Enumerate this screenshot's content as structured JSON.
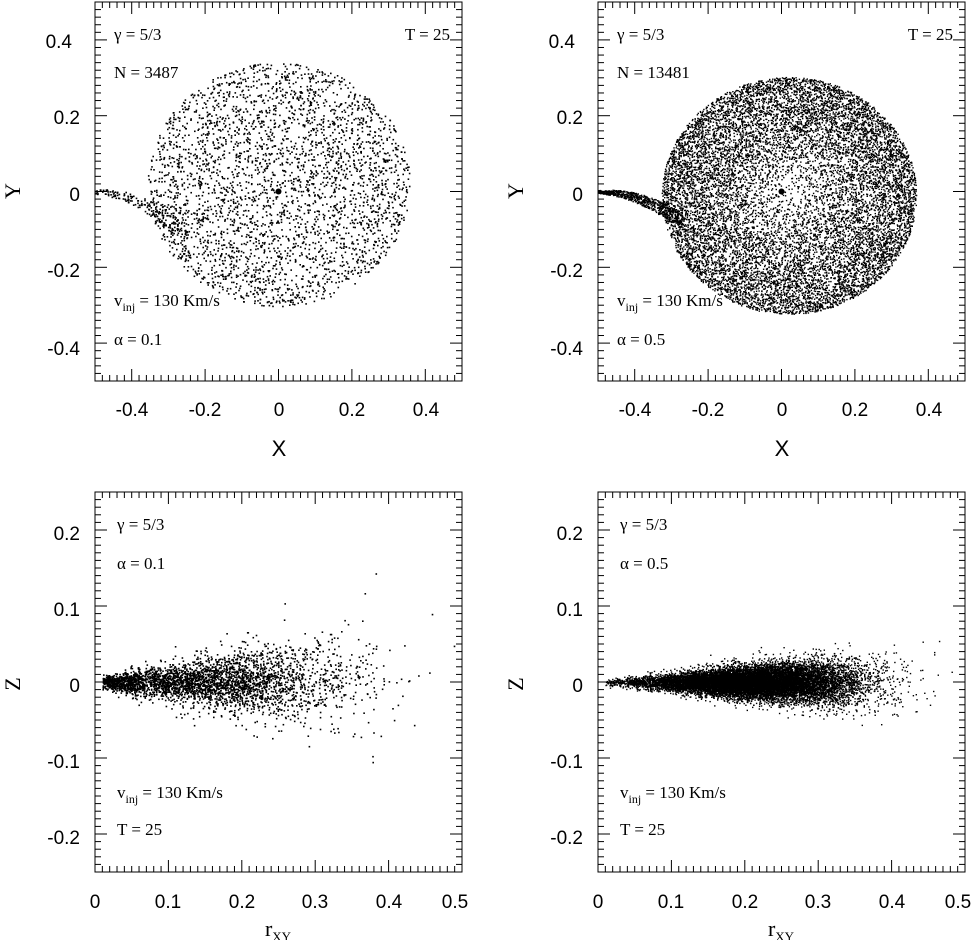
{
  "chart_data": [
    {
      "panel": "top-left",
      "type": "scatter",
      "xlabel": "X",
      "ylabel": "Y",
      "xlim": [
        -0.5,
        0.5
      ],
      "ylim": [
        -0.5,
        0.5
      ],
      "xticks": [
        "-0.4",
        "-0.2",
        "0",
        "0.2",
        "0.4"
      ],
      "yticks": [
        "0.4",
        "0.2",
        "0",
        "-0.2",
        "-0.4"
      ],
      "annotations": {
        "gamma": "γ  =  5/3",
        "time": "T  =  25",
        "count": "N  =  3487",
        "vinj_prefix": "v",
        "vinj_sub": "inj",
        "vinj_value": "  =  130  Km/s",
        "alpha": "α  =  0.1"
      },
      "central_star": {
        "x": 0,
        "y": 0
      },
      "disc": {
        "n": 3487,
        "radius": 0.35,
        "centre": [
          0.0,
          0.0
        ]
      },
      "stream": {
        "start": [
          -0.5,
          0.0
        ],
        "end": [
          -0.25,
          -0.12
        ],
        "width": 0.05
      }
    },
    {
      "panel": "top-right",
      "type": "scatter",
      "xlabel": "X",
      "ylabel": "Y",
      "xlim": [
        -0.5,
        0.5
      ],
      "ylim": [
        -0.5,
        0.5
      ],
      "xticks": [
        "-0.4",
        "-0.2",
        "0",
        "0.2",
        "0.4"
      ],
      "yticks": [
        "0.4",
        "0.2",
        "0",
        "-0.2",
        "-0.4"
      ],
      "annotations": {
        "gamma": "γ  =  5/3",
        "time": "T  =  25",
        "count": "N  =  13481",
        "vinj_prefix": "v",
        "vinj_sub": "inj",
        "vinj_value": "  =  130  Km/s",
        "alpha": "α  =  0.5"
      },
      "central_star": {
        "x": 0,
        "y": 0
      },
      "disc": {
        "n": 13481,
        "radius": 0.34,
        "centre": [
          0.02,
          -0.01
        ]
      },
      "stream": {
        "start": [
          -0.5,
          0.0
        ],
        "end": [
          -0.27,
          -0.08
        ],
        "width": 0.04
      }
    },
    {
      "panel": "bottom-left",
      "type": "scatter",
      "xlabel": "r",
      "xlabel_sub": "XY",
      "ylabel": "Z",
      "xlim": [
        0,
        0.5
      ],
      "ylim": [
        -0.25,
        0.25
      ],
      "xticks": [
        "0",
        "0.1",
        "0.2",
        "0.3",
        "0.4",
        "0.5"
      ],
      "yticks": [
        "0.2",
        "0.1",
        "0",
        "-0.1",
        "-0.2"
      ],
      "annotations": {
        "gamma": "γ  =  5/3",
        "alpha": "α  =  0.1",
        "vinj_prefix": "v",
        "vinj_sub": "inj",
        "vinj_value": "  =  130  Km/s",
        "time": "T  =  25"
      },
      "distribution": {
        "n": 3487,
        "r_peak": 0.15,
        "z_scale_max": 0.09
      }
    },
    {
      "panel": "bottom-right",
      "type": "scatter",
      "xlabel": "r",
      "xlabel_sub": "XY",
      "ylabel": "Z",
      "xlim": [
        0,
        0.5
      ],
      "ylim": [
        -0.25,
        0.25
      ],
      "xticks": [
        "0",
        "0.1",
        "0.2",
        "0.3",
        "0.4",
        "0.5"
      ],
      "yticks": [
        "0.2",
        "0.1",
        "0",
        "-0.1",
        "-0.2"
      ],
      "annotations": {
        "gamma": "γ  =  5/3",
        "alpha": "α  =  0.5",
        "vinj_prefix": "v",
        "vinj_sub": "inj",
        "vinj_value": "  =  130  Km/s",
        "time": "T  =  25"
      },
      "distribution": {
        "n": 13481,
        "r_peak": 0.21,
        "z_scale_max": 0.045
      }
    }
  ]
}
